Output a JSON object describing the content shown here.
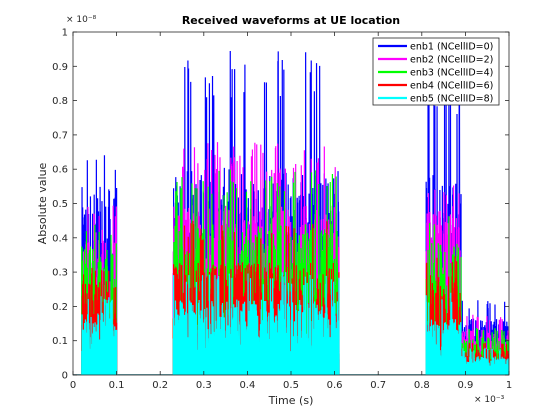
{
  "chart_data": {
    "type": "line",
    "title": "Received waveforms at UE location",
    "xlabel": "Time (s)",
    "ylabel": "Absolute value",
    "x_multiplier": "× 10⁻³",
    "y_multiplier": "× 10⁻⁸",
    "xlim": [
      0,
      1
    ],
    "ylim": [
      0,
      1
    ],
    "x_ticks": [
      "0",
      "0.1",
      "0.2",
      "0.3",
      "0.4",
      "0.5",
      "0.6",
      "0.7",
      "0.8",
      "0.9",
      "1"
    ],
    "y_ticks": [
      "0",
      "0.1",
      "0.2",
      "0.3",
      "0.4",
      "0.5",
      "0.6",
      "0.7",
      "0.8",
      "0.9",
      "1"
    ],
    "grid": false,
    "legend_position": "top-right",
    "series": [
      {
        "name": "enb1 (NCellID=0)",
        "color": "#0000ff",
        "bursts": [
          {
            "x": [
              0.02,
              0.1
            ],
            "level": 0.5,
            "peak": 0.66
          },
          {
            "x": [
              0.23,
              0.61
            ],
            "level": 0.55,
            "peak": 0.95
          },
          {
            "x": [
              0.81,
              0.89
            ],
            "level": 0.55,
            "peak": 0.9
          },
          {
            "x": [
              0.89,
              1.0
            ],
            "level": 0.15,
            "peak": 0.22
          }
        ]
      },
      {
        "name": "enb2 (NCellID=2)",
        "color": "#ff00ff",
        "bursts": [
          {
            "x": [
              0.02,
              0.1
            ],
            "level": 0.4,
            "peak": 0.5
          },
          {
            "x": [
              0.23,
              0.61
            ],
            "level": 0.45,
            "peak": 0.68
          },
          {
            "x": [
              0.81,
              0.89
            ],
            "level": 0.45,
            "peak": 0.56
          },
          {
            "x": [
              0.89,
              1.0
            ],
            "level": 0.12,
            "peak": 0.18
          }
        ]
      },
      {
        "name": "enb3 (NCellID=4)",
        "color": "#00ff00",
        "bursts": [
          {
            "x": [
              0.02,
              0.1
            ],
            "level": 0.35,
            "peak": 0.44
          },
          {
            "x": [
              0.23,
              0.61
            ],
            "level": 0.4,
            "peak": 0.6
          },
          {
            "x": [
              0.81,
              0.89
            ],
            "level": 0.35,
            "peak": 0.48
          },
          {
            "x": [
              0.89,
              1.0
            ],
            "level": 0.1,
            "peak": 0.14
          }
        ]
      },
      {
        "name": "enb4 (NCellID=6)",
        "color": "#ff0000",
        "bursts": [
          {
            "x": [
              0.02,
              0.1
            ],
            "level": 0.25,
            "peak": 0.32
          },
          {
            "x": [
              0.23,
              0.61
            ],
            "level": 0.3,
            "peak": 0.45
          },
          {
            "x": [
              0.81,
              0.89
            ],
            "level": 0.27,
            "peak": 0.36
          },
          {
            "x": [
              0.89,
              1.0
            ],
            "level": 0.07,
            "peak": 0.1
          }
        ]
      },
      {
        "name": "enb5 (NCellID=8)",
        "color": "#00ffff",
        "bursts": [
          {
            "x": [
              0.02,
              0.1
            ],
            "level": 0.17,
            "peak": 0.23
          },
          {
            "x": [
              0.23,
              0.61
            ],
            "level": 0.2,
            "peak": 0.3
          },
          {
            "x": [
              0.81,
              0.89
            ],
            "level": 0.15,
            "peak": 0.24
          },
          {
            "x": [
              0.89,
              1.0
            ],
            "level": 0.05,
            "peak": 0.08
          }
        ]
      }
    ]
  }
}
